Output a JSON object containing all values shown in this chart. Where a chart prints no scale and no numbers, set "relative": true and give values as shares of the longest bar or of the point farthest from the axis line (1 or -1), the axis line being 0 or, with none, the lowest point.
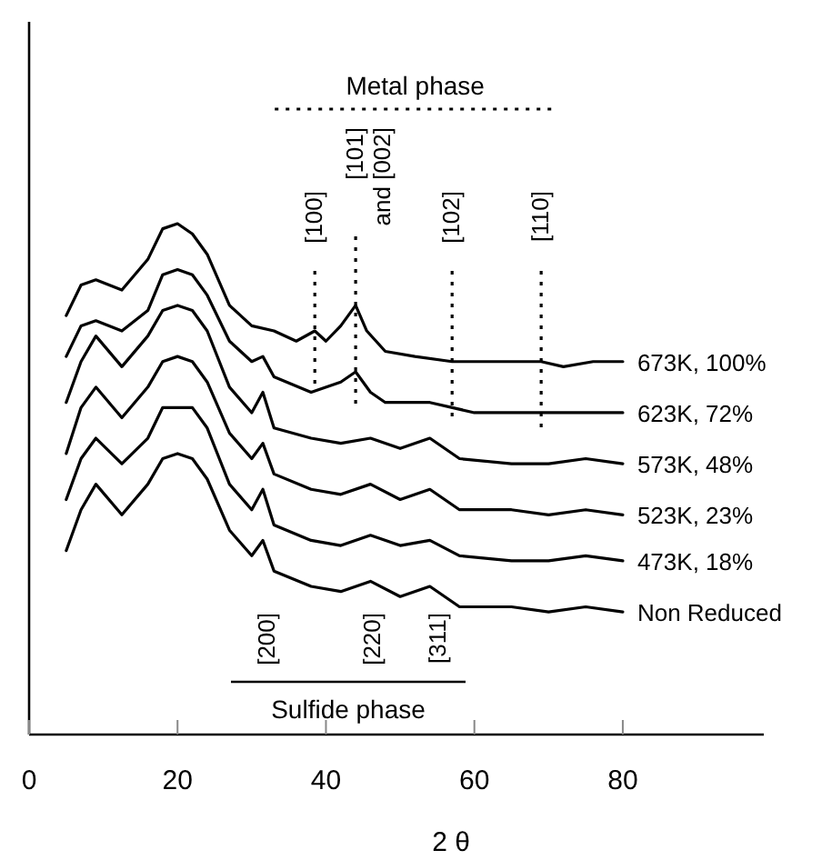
{
  "chart_data": {
    "type": "line",
    "relative": true,
    "xlabel": "2 θ",
    "xlim": [
      0,
      99
    ],
    "xticks": [
      0,
      20,
      40,
      60,
      80
    ],
    "line_style": "solid",
    "marker": "none",
    "series": [
      {
        "name": "673K, 100%",
        "color": "#000000",
        "x": [
          5,
          7,
          9,
          12.5,
          16,
          18,
          20,
          22,
          24,
          27,
          30,
          33,
          36,
          38.5,
          40,
          42,
          44,
          45.5,
          48,
          52,
          57,
          60,
          65,
          69,
          72,
          76,
          80
        ],
        "values": [
          0.82,
          0.88,
          0.89,
          0.87,
          0.93,
          0.99,
          1,
          0.98,
          0.94,
          0.84,
          0.8,
          0.79,
          0.77,
          0.79,
          0.77,
          0.8,
          0.84,
          0.79,
          0.75,
          0.74,
          0.73,
          0.73,
          0.73,
          0.73,
          0.72,
          0.73,
          0.73
        ]
      },
      {
        "name": "623K, 72%",
        "color": "#000000",
        "x": [
          5,
          7,
          9,
          12.5,
          16,
          18,
          20,
          22,
          24,
          27,
          30,
          31.5,
          33,
          38,
          42,
          44,
          46,
          48,
          54,
          60,
          70,
          80
        ],
        "values": [
          0.74,
          0.8,
          0.81,
          0.79,
          0.83,
          0.9,
          0.91,
          0.9,
          0.86,
          0.77,
          0.73,
          0.74,
          0.7,
          0.67,
          0.69,
          0.71,
          0.67,
          0.65,
          0.65,
          0.63,
          0.63,
          0.63
        ]
      },
      {
        "name": "573K, 48%",
        "color": "#000000",
        "values": [
          0.65,
          0.73,
          0.78,
          0.72,
          0.78,
          0.83,
          0.84,
          0.83,
          0.79,
          0.68,
          0.63,
          0.67,
          0.6,
          0.58,
          0.57,
          0.58,
          0.56,
          0.58,
          0.54,
          0.53,
          0.53,
          0.54,
          0.53
        ]
      },
      {
        "name": "523K, 23%",
        "color": "#000000",
        "values": [
          0.55,
          0.64,
          0.68,
          0.62,
          0.68,
          0.73,
          0.74,
          0.73,
          0.69,
          0.59,
          0.54,
          0.57,
          0.51,
          0.48,
          0.47,
          0.49,
          0.46,
          0.48,
          0.44,
          0.44,
          0.43,
          0.44,
          0.43
        ]
      },
      {
        "name": "473K, 18%",
        "color": "#000000",
        "values": [
          0.46,
          0.54,
          0.58,
          0.53,
          0.58,
          0.64,
          0.64,
          0.64,
          0.6,
          0.49,
          0.44,
          0.48,
          0.41,
          0.38,
          0.37,
          0.39,
          0.37,
          0.38,
          0.35,
          0.34,
          0.34,
          0.35,
          0.34
        ]
      },
      {
        "name": "Non Reduced",
        "color": "#000000",
        "values": [
          0.36,
          0.44,
          0.49,
          0.43,
          0.49,
          0.54,
          0.55,
          0.54,
          0.5,
          0.4,
          0.35,
          0.38,
          0.32,
          0.29,
          0.28,
          0.3,
          0.27,
          0.29,
          0.25,
          0.25,
          0.24,
          0.25,
          0.24
        ]
      }
    ],
    "x": [
      5,
      7,
      9,
      12.5,
      16,
      18,
      20,
      22,
      24,
      27,
      30,
      31.5,
      33,
      38,
      42,
      46,
      50,
      54,
      58,
      65,
      70,
      75,
      80
    ],
    "ref_lines": [
      {
        "axis": "x",
        "value": 38.5,
        "line_style": "dotted"
      },
      {
        "axis": "x",
        "value": 44,
        "line_style": "dotted"
      },
      {
        "axis": "x",
        "value": 57,
        "line_style": "dotted"
      },
      {
        "axis": "x",
        "value": 69,
        "line_style": "dotted"
      }
    ],
    "annotations": [
      "Metal phase",
      "[100]",
      "[101] and [002]",
      "[102]",
      "[110]",
      "Sulfide phase",
      "[200]",
      "[220]",
      "[311]"
    ]
  }
}
